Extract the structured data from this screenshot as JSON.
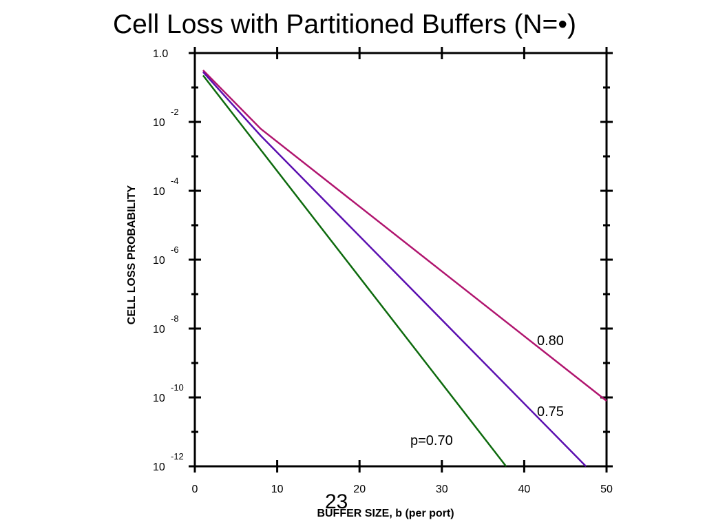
{
  "slide": {
    "title": "Cell Loss with Partitioned Buffers (N=•)",
    "page_number": "23"
  },
  "chart_data": {
    "type": "line",
    "title": "Cell Loss with Partitioned Buffers (N=•)",
    "xlabel": "BUFFER SIZE, b (per port)",
    "ylabel": "CELL LOSS PROBABILITY",
    "xlim": [
      0,
      50
    ],
    "ylim_log10": [
      -12,
      0
    ],
    "y_scale": "log",
    "x_ticks": [
      0,
      10,
      20,
      30,
      40,
      50
    ],
    "x_tick_labels": [
      "0",
      "10",
      "20",
      "30",
      "40",
      "50"
    ],
    "y_ticks": [
      {
        "base": "1.0",
        "exp": ""
      },
      {
        "base": "10",
        "exp": "-2"
      },
      {
        "base": "10",
        "exp": "-4"
      },
      {
        "base": "10",
        "exp": "-6"
      },
      {
        "base": "10",
        "exp": "-8"
      },
      {
        "base": "10",
        "exp": "-10"
      },
      {
        "base": "10",
        "exp": "-12"
      }
    ],
    "grid": false,
    "series": [
      {
        "name": "0.80",
        "label": "0.80",
        "color": "#b0146e",
        "x": [
          1,
          8,
          50
        ],
        "log10_y": [
          -0.5,
          -2.2,
          -10.1
        ]
      },
      {
        "name": "0.75",
        "label": "0.75",
        "color": "#5b0fb0",
        "x": [
          1,
          8,
          47.5
        ],
        "log10_y": [
          -0.55,
          -2.4,
          -12.0
        ]
      },
      {
        "name": "p=0.70",
        "label": "p=0.70",
        "color": "#0d6a0d",
        "x": [
          1,
          37.8
        ],
        "log10_y": [
          -0.65,
          -12.0
        ]
      }
    ]
  }
}
